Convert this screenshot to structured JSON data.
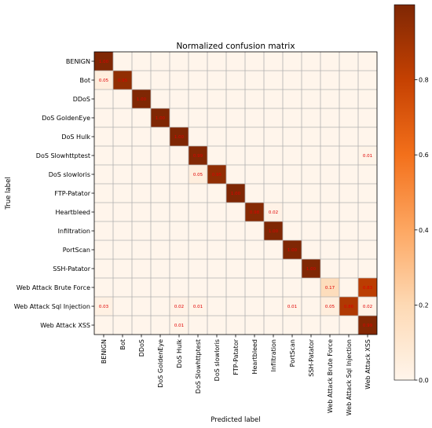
{
  "chart_data": {
    "type": "heatmap",
    "title": "Normalized confusion matrix",
    "xlabel": "Predicted label",
    "ylabel": "True label",
    "labels": [
      "BENIGN",
      "Bot",
      "DDoS",
      "DoS GoldenEye",
      "DoS Hulk",
      "DoS Slowhttptest",
      "DoS slowloris",
      "FTP-Patator",
      "Heartbleed",
      "Infiltration",
      "PortScan",
      "SSH-Patator",
      "Web Attack Brute Force",
      "Web Attack Sql Injection",
      "Web Attack XSS"
    ],
    "colorbar_ticks": [
      "0.0",
      "0.2",
      "0.4",
      "0.6",
      "0.8"
    ],
    "color_range": [
      0,
      1
    ],
    "cells": [
      {
        "r": 0,
        "c": 0,
        "v": 1.0,
        "text": "1.00"
      },
      {
        "r": 1,
        "c": 0,
        "v": 0.05,
        "text": "0.05"
      },
      {
        "r": 1,
        "c": 1,
        "v": 0.95,
        "text": "0.95"
      },
      {
        "r": 2,
        "c": 2,
        "v": 1.0,
        "text": "1.00"
      },
      {
        "r": 3,
        "c": 3,
        "v": 1.0,
        "text": "1.00"
      },
      {
        "r": 4,
        "c": 4,
        "v": 1.0,
        "text": "1.00"
      },
      {
        "r": 5,
        "c": 5,
        "v": 0.99,
        "text": "0.99"
      },
      {
        "r": 5,
        "c": 14,
        "v": 0.01,
        "text": "0.01"
      },
      {
        "r": 6,
        "c": 5,
        "v": 0.05,
        "text": "0.05"
      },
      {
        "r": 6,
        "c": 6,
        "v": 0.95,
        "text": "0.95"
      },
      {
        "r": 7,
        "c": 7,
        "v": 1.0,
        "text": "1.00"
      },
      {
        "r": 8,
        "c": 8,
        "v": 0.98,
        "text": "0.98"
      },
      {
        "r": 8,
        "c": 9,
        "v": 0.02,
        "text": "0.02"
      },
      {
        "r": 9,
        "c": 9,
        "v": 1.0,
        "text": "1.00"
      },
      {
        "r": 10,
        "c": 10,
        "v": 1.0,
        "text": "1.00"
      },
      {
        "r": 11,
        "c": 11,
        "v": 1.0,
        "text": "1.00"
      },
      {
        "r": 12,
        "c": 12,
        "v": 0.17,
        "text": "0.17"
      },
      {
        "r": 12,
        "c": 14,
        "v": 0.83,
        "text": "0.83"
      },
      {
        "r": 13,
        "c": 0,
        "v": 0.03,
        "text": "0.03"
      },
      {
        "r": 13,
        "c": 4,
        "v": 0.02,
        "text": "0.02"
      },
      {
        "r": 13,
        "c": 5,
        "v": 0.01,
        "text": "0.01"
      },
      {
        "r": 13,
        "c": 10,
        "v": 0.01,
        "text": "0.01"
      },
      {
        "r": 13,
        "c": 12,
        "v": 0.05,
        "text": "0.05"
      },
      {
        "r": 13,
        "c": 13,
        "v": 0.86,
        "text": "0.86"
      },
      {
        "r": 13,
        "c": 14,
        "v": 0.02,
        "text": "0.02"
      },
      {
        "r": 14,
        "c": 4,
        "v": 0.01,
        "text": "0.01"
      },
      {
        "r": 14,
        "c": 14,
        "v": 0.99,
        "text": "0.99"
      }
    ]
  }
}
